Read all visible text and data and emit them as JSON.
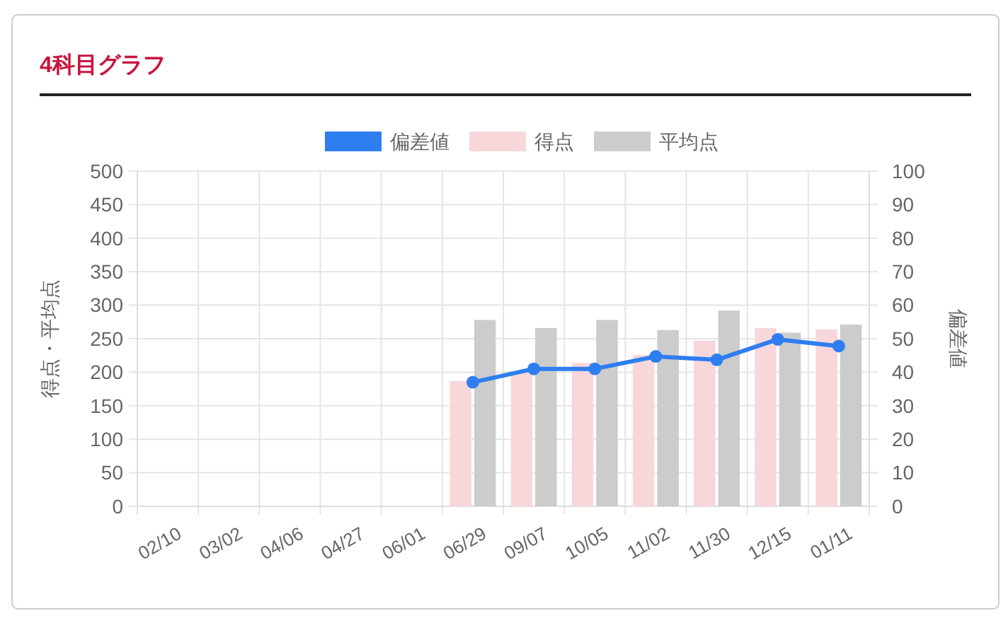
{
  "chart_data": {
    "type": "bar",
    "title": "4科目グラフ",
    "ylabel": "得点・平均点",
    "y2label": "偏差値",
    "categories": [
      "02/10",
      "03/02",
      "04/06",
      "04/27",
      "06/01",
      "06/29",
      "09/07",
      "10/05",
      "11/02",
      "11/30",
      "12/15",
      "01/11"
    ],
    "series": [
      {
        "name": "偏差値",
        "type": "line",
        "axis": "y2",
        "color": "#2f7ef0",
        "values": [
          null,
          null,
          null,
          null,
          null,
          37,
          41,
          41,
          44.7,
          43.7,
          49.8,
          47.8
        ]
      },
      {
        "name": "得点",
        "color": "#f8d7da",
        "values": [
          null,
          null,
          null,
          null,
          null,
          187,
          200,
          214,
          226,
          247,
          266,
          264
        ]
      },
      {
        "name": "平均点",
        "color": "#cccccc",
        "values": [
          null,
          null,
          null,
          null,
          null,
          278,
          266,
          278,
          263,
          292,
          259,
          271
        ]
      }
    ],
    "ylim": [
      0,
      500
    ],
    "yticks": [
      0,
      50,
      100,
      150,
      200,
      250,
      300,
      350,
      400,
      450,
      500
    ],
    "y2lim": [
      0,
      100
    ],
    "y2ticks": [
      0,
      10,
      20,
      30,
      40,
      50,
      60,
      70,
      80,
      90,
      100
    ],
    "grid": true,
    "legend": "top",
    "marker": "circle",
    "line_style": "solid"
  }
}
